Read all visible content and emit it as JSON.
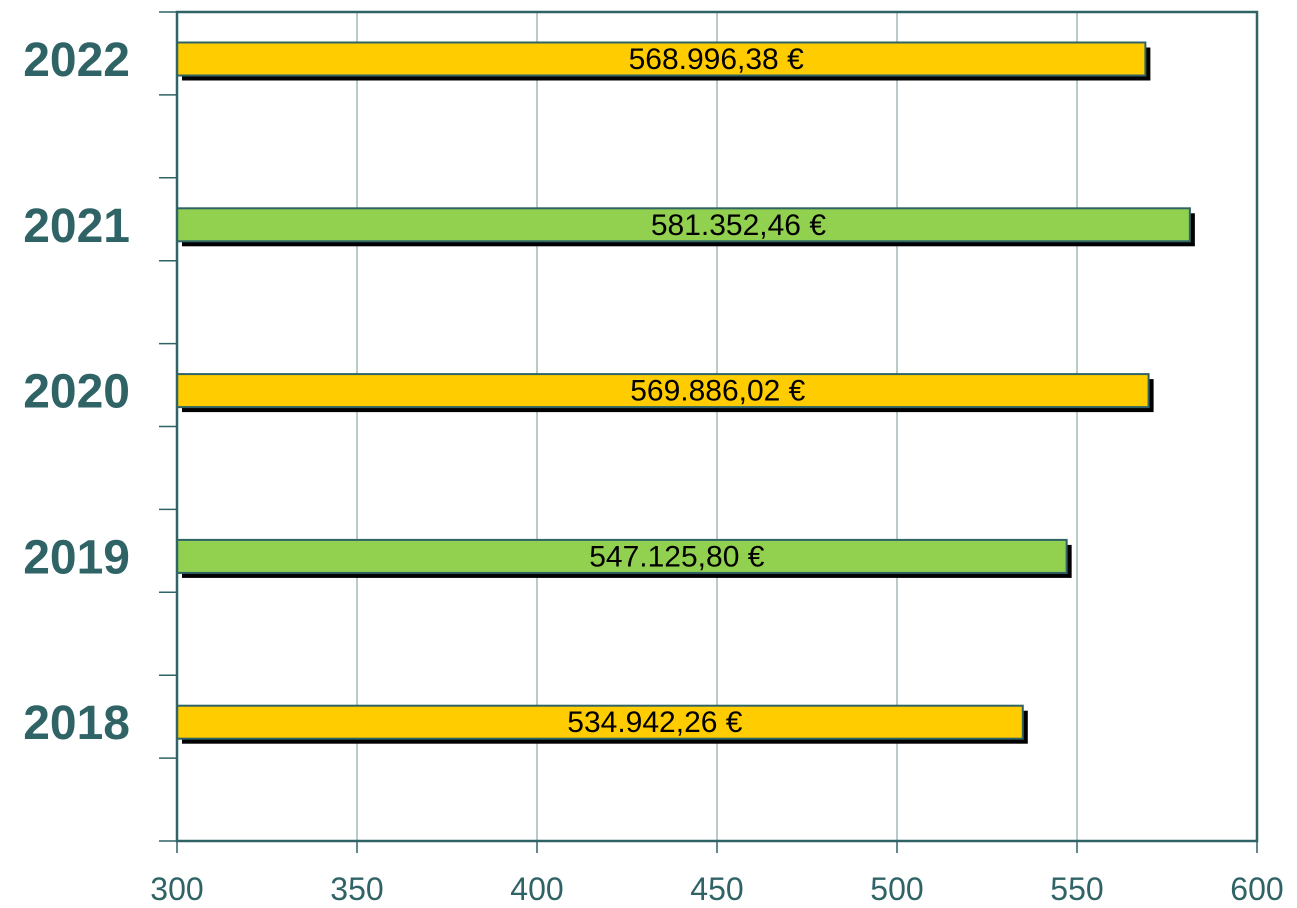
{
  "chart_data": {
    "type": "bar",
    "orientation": "horizontal",
    "categories": [
      "2022",
      "2021",
      "2020",
      "2019",
      "2018"
    ],
    "values": [
      568.99638,
      581.35246,
      569.88602,
      547.1258,
      534.94226
    ],
    "data_labels": [
      "568.996,38 €",
      "581.352,46 €",
      "569.886,02 €",
      "547.125,80 €",
      "534.942,26 €"
    ],
    "xlim": [
      300,
      600
    ],
    "xticks": [
      "300",
      "350",
      "400",
      "450",
      "500",
      "550",
      "600"
    ],
    "bar_colors": [
      "#ffcc00",
      "#92d050",
      "#ffcc00",
      "#92d050",
      "#ffcc00"
    ],
    "axis_color": "#2f6366",
    "grid": true,
    "title": "",
    "xlabel": "",
    "ylabel": ""
  }
}
